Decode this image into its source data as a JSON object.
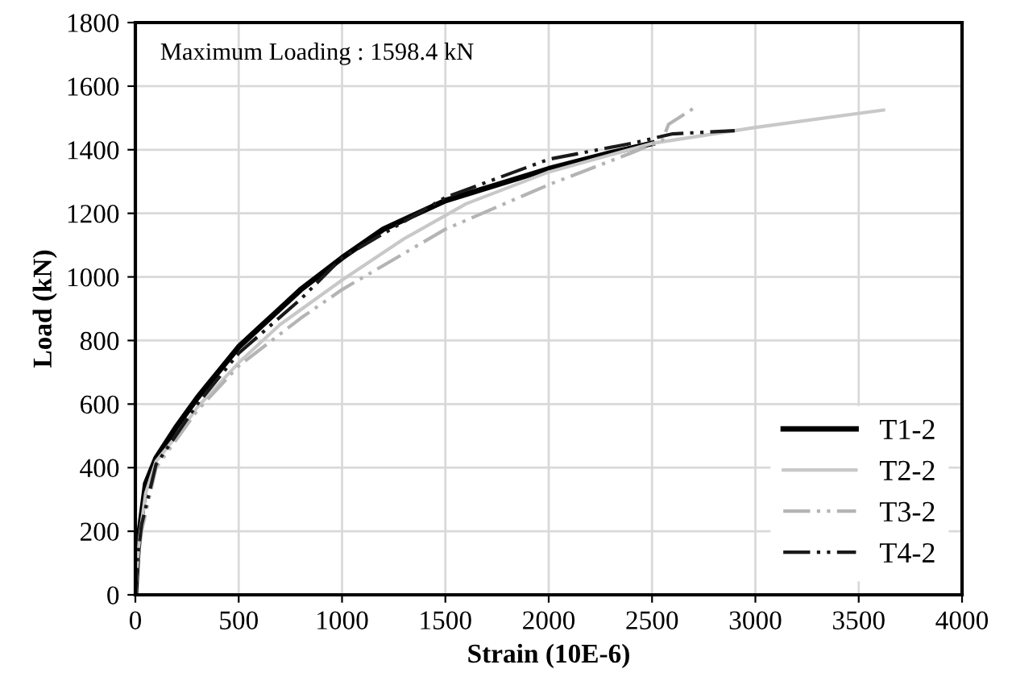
{
  "chart_data": {
    "type": "line",
    "xlabel": "Strain (10E-6)",
    "ylabel": "Load (kN)",
    "annotations": [
      "Maximum Loading : 1598.4 kN"
    ],
    "series": [
      {
        "name": "T1-2",
        "color": "#000000",
        "line_style": "solid",
        "x": [
          0,
          10,
          20,
          50,
          100,
          200,
          300,
          400,
          500,
          600,
          700,
          800,
          1000,
          1200,
          1500,
          1800,
          2000,
          2300,
          2500
        ],
        "values": [
          0,
          120,
          200,
          350,
          430,
          530,
          620,
          700,
          780,
          840,
          900,
          960,
          1060,
          1150,
          1240,
          1300,
          1340,
          1390,
          1420
        ]
      },
      {
        "name": "T2-2",
        "color": "#c8c8c8",
        "line_style": "solid",
        "x": [
          0,
          10,
          20,
          50,
          100,
          200,
          300,
          500,
          700,
          1000,
          1300,
          1600,
          2000,
          2500,
          3000,
          3620
        ],
        "values": [
          0,
          100,
          180,
          320,
          420,
          500,
          590,
          730,
          850,
          990,
          1120,
          1230,
          1330,
          1420,
          1470,
          1525
        ]
      },
      {
        "name": "T3-2",
        "color": "#b4b4b4",
        "line_style": "dashdotdot",
        "x": [
          0,
          10,
          30,
          100,
          300,
          500,
          800,
          1000,
          1500,
          2000,
          2400,
          2550,
          2580,
          2700
        ],
        "values": [
          0,
          100,
          200,
          400,
          580,
          720,
          870,
          960,
          1150,
          1290,
          1390,
          1430,
          1480,
          1530
        ]
      },
      {
        "name": "T4-2",
        "color": "#1a1a1a",
        "line_style": "dashdotdot",
        "x": [
          0,
          10,
          30,
          100,
          300,
          500,
          800,
          1000,
          1500,
          2000,
          2400,
          2600,
          2900
        ],
        "values": [
          0,
          110,
          220,
          410,
          600,
          760,
          930,
          1060,
          1250,
          1370,
          1420,
          1450,
          1460
        ]
      }
    ],
    "xlim": [
      0,
      4000
    ],
    "xticks": [
      0,
      500,
      1000,
      1500,
      2000,
      2500,
      3000,
      3500,
      4000
    ],
    "ylim": [
      0,
      1800
    ],
    "yticks": [
      0,
      200,
      400,
      600,
      800,
      1000,
      1200,
      1400,
      1600,
      1800
    ],
    "grid": true,
    "legend": "bottom right",
    "marker": "none"
  }
}
